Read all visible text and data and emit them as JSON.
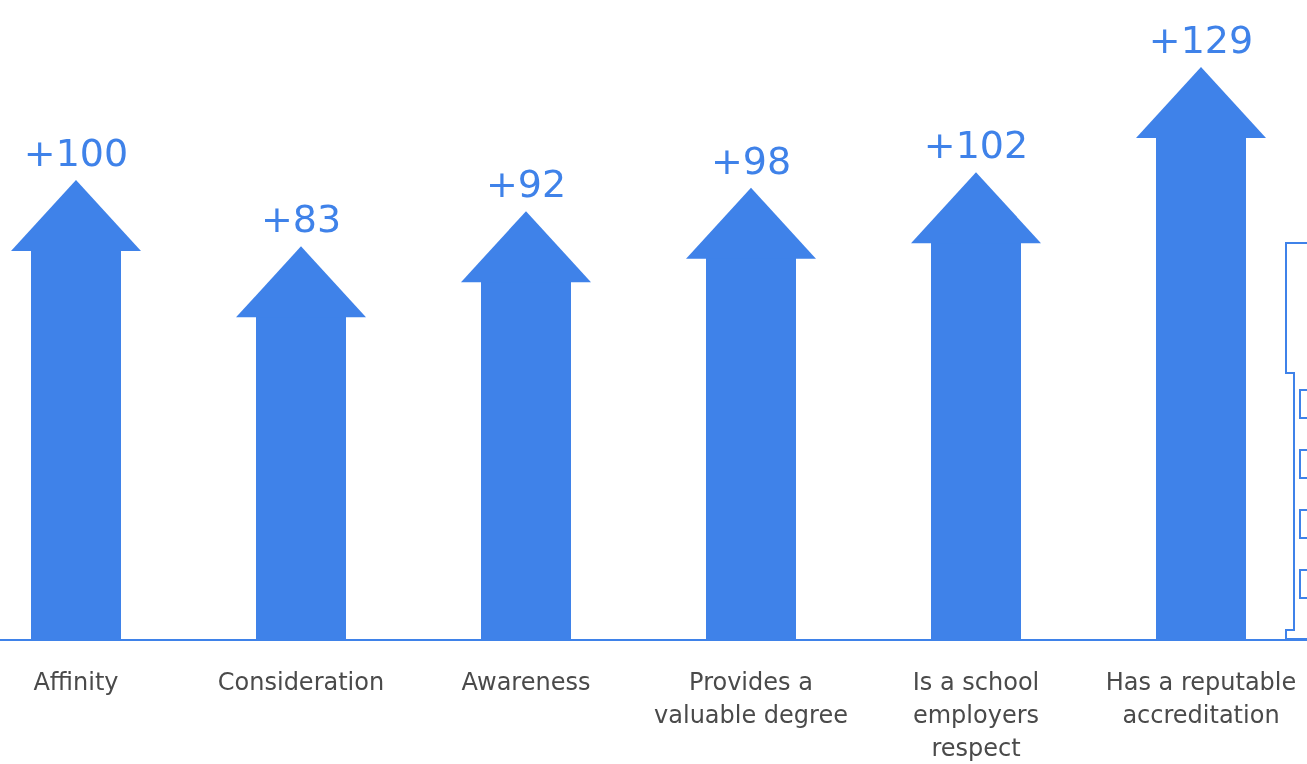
{
  "chart_data": {
    "type": "bar",
    "categories": [
      "Affinity",
      "Consideration",
      "Awareness",
      "Provides a valuable degree",
      "Is a school employers respect",
      "Has a reputable accreditation"
    ],
    "values": [
      100,
      83,
      92,
      98,
      102,
      129
    ],
    "value_labels": [
      "+100",
      "+83",
      "+92",
      "+98",
      "+102",
      "+129"
    ],
    "color": "#3f82e9"
  }
}
